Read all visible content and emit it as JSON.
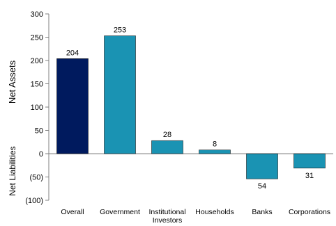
{
  "chart_data": {
    "type": "bar",
    "title": "",
    "categories": [
      "Overall",
      "Government",
      "Institutional\nInvestors",
      "Households",
      "Banks",
      "Corporations"
    ],
    "values": [
      204,
      253,
      28,
      8,
      -54,
      -31
    ],
    "data_labels": [
      "204",
      "253",
      "28",
      "8",
      "54",
      "31"
    ],
    "ylim": [
      -100,
      300
    ],
    "yticks": [
      300,
      250,
      200,
      150,
      100,
      50,
      0,
      -50,
      -100
    ],
    "ytick_labels": [
      "300",
      "250",
      "200",
      "150",
      "100",
      "50",
      "0",
      "(50)",
      "(100)"
    ],
    "ylabel_positive": "Net  Assets",
    "ylabel_negative": "Net Liabilities",
    "grid": false,
    "bar_colors": [
      "#001a5e",
      "#1a93b3",
      "#1a93b3",
      "#1a93b3",
      "#1a93b3",
      "#1a93b3"
    ],
    "axis_color": "#7f7f7f",
    "label_color": "#000000",
    "top_text_color": "#1a9ad6"
  }
}
